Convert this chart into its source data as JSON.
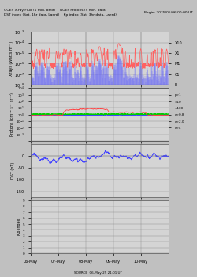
{
  "title_line1": "GOES X-ray Flux (5 min. data)    GOES Protons (5 min. data)",
  "title_line2": "DST index (Sat. 1hr data, Laerd)    Kp index (Sat. 3hr data, Laerd)",
  "begin_label": "Begin: 2025/05/06 00:00 UT",
  "source_label": "SOURCE  06-May-25 21:01 UT",
  "xtick_labels": [
    "06-May",
    "07-May",
    "08-May",
    "09-May",
    "10-May"
  ],
  "xray_ylabel": "Xrays (Watts m⁻²)",
  "xray_right_labels": [
    "X10",
    "X1",
    "M1",
    "C1",
    "B"
  ],
  "proton_ylabel": "Protons (cm⁻² s⁻¹ sr⁻¹)",
  "proton_right_labels": [
    "p>1",
    ">10",
    ">100",
    "e>0.8",
    "e>2.0",
    "e>4"
  ],
  "dst_ylabel": "DST (nT)",
  "kp_ylabel": "Kp Index",
  "fig_bg": "#c0c0c0",
  "panel_bg": "#d4d4d4",
  "grid_color": "#888888",
  "xray_long_color": "#ff6060",
  "xray_short_color": "#5555ff",
  "proton_p1_color": "#ff4444",
  "proton_p10_color": "#00cc00",
  "proton_e_color": "#4444ff",
  "dst_color": "#4444ff",
  "kp_color": "#4444ff",
  "border_color": "#555555",
  "dashed_vline_color": "#888888"
}
